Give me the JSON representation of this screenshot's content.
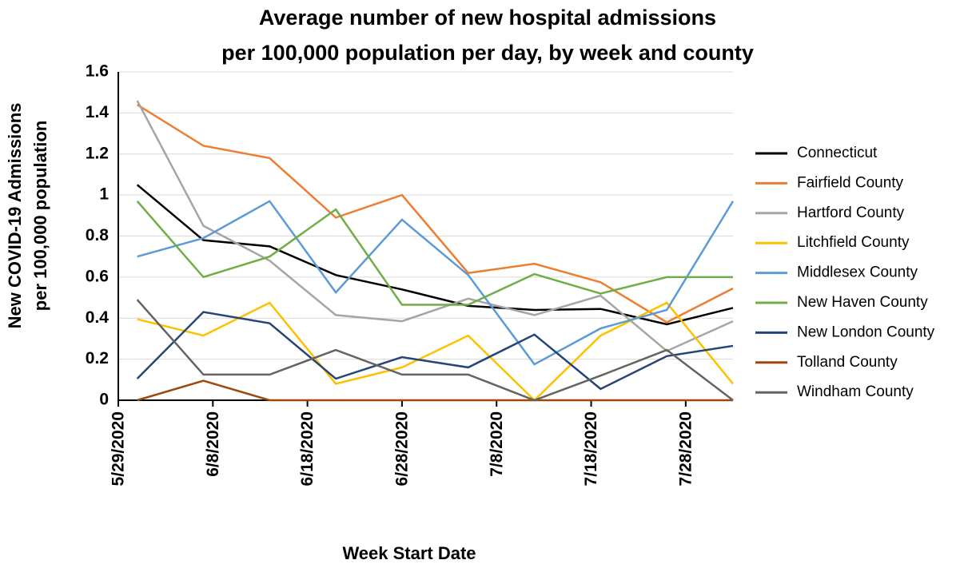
{
  "chart_data": {
    "type": "line",
    "title": [
      "Average number of new hospital admissions",
      "per 100,000 population per day, by week and county"
    ],
    "x_label": "Week Start Date",
    "y_label": [
      "New COVID-19 Admissions",
      "per 100,000 population"
    ],
    "x": [
      "5/31/2020",
      "6/7/2020",
      "6/14/2020",
      "6/21/2020",
      "6/28/2020",
      "7/5/2020",
      "7/12/2020",
      "7/19/2020",
      "7/26/2020",
      "8/2/2020"
    ],
    "xlim": [
      "5/29/2020",
      "8/2/2020"
    ],
    "xticks": [
      "5/29/2020",
      "6/8/2020",
      "6/18/2020",
      "6/28/2020",
      "7/8/2020",
      "7/18/2020",
      "7/28/2020"
    ],
    "ylim": [
      0,
      1.6
    ],
    "yticks": [
      0,
      0.2,
      0.4,
      0.6,
      0.8,
      1,
      1.2,
      1.4,
      1.6
    ],
    "grid": true,
    "legend": "right",
    "series": [
      {
        "name": "Connecticut",
        "color": "#000000",
        "values": [
          1.05,
          0.78,
          0.75,
          0.61,
          0.54,
          0.46,
          0.44,
          0.445,
          0.37,
          0.45
        ]
      },
      {
        "name": "Fairfield County",
        "color": "#ed7d31",
        "values": [
          1.44,
          1.24,
          1.18,
          0.89,
          1.0,
          0.62,
          0.665,
          0.575,
          0.38,
          0.545
        ]
      },
      {
        "name": "Hartford County",
        "color": "#a5a5a5",
        "values": [
          1.46,
          0.85,
          0.68,
          0.415,
          0.385,
          0.495,
          0.415,
          0.51,
          0.24,
          0.385
        ]
      },
      {
        "name": "Litchfield County",
        "color": "#ffc000",
        "values": [
          0.395,
          0.315,
          0.475,
          0.08,
          0.16,
          0.315,
          0,
          0.315,
          0.475,
          0.08
        ]
      },
      {
        "name": "Middlesex County",
        "color": "#5b9bd5",
        "values": [
          0.7,
          0.79,
          0.97,
          0.525,
          0.88,
          0.61,
          0.175,
          0.35,
          0.44,
          0.97
        ]
      },
      {
        "name": "New Haven County",
        "color": "#70ad47",
        "values": [
          0.97,
          0.6,
          0.7,
          0.93,
          0.465,
          0.465,
          0.615,
          0.52,
          0.6,
          0.6
        ]
      },
      {
        "name": "New London County",
        "color": "#264478",
        "values": [
          0.105,
          0.43,
          0.375,
          0.105,
          0.21,
          0.16,
          0.32,
          0.055,
          0.215,
          0.265
        ]
      },
      {
        "name": "Tolland County",
        "color": "#9e480e",
        "values": [
          0,
          0.095,
          0,
          0,
          0,
          0,
          0,
          0,
          0,
          0
        ]
      },
      {
        "name": "Windham County",
        "color": "#636363",
        "values": [
          0.49,
          0.125,
          0.125,
          0.245,
          0.125,
          0.125,
          0,
          0.12,
          0.245,
          0
        ]
      }
    ]
  }
}
